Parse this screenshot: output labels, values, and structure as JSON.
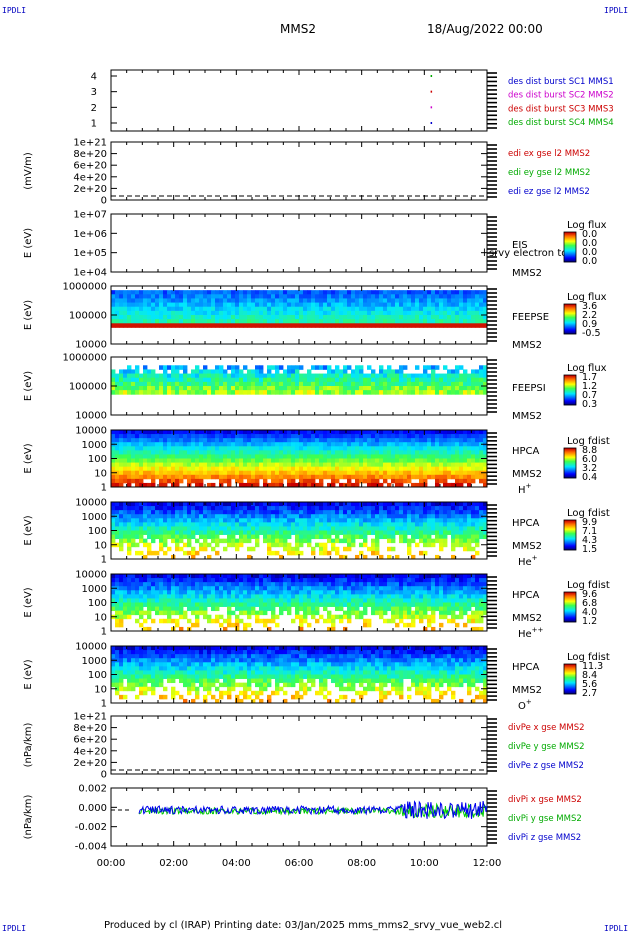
{
  "page": {
    "corner_label": "IPDLI",
    "spacecraft": "MMS2",
    "datetime": "18/Aug/2022 00:00",
    "footer": "Produced by cl (IRAP)   Printing date: 03/Jan/2025   mms_mms2_srvy_vue_web2.cl"
  },
  "chart_data": {
    "type": "multi-panel time series and spectrograms",
    "x_axis": {
      "range": [
        "00:00",
        "12:00"
      ],
      "ticks": [
        "00:00",
        "02:00",
        "04:00",
        "06:00",
        "08:00",
        "10:00",
        "12:00"
      ]
    },
    "panels": [
      {
        "id": "p1",
        "kind": "availability",
        "ylabel": "",
        "yticks": [
          "4",
          "3",
          "2",
          "1"
        ],
        "legend": [
          {
            "text": "des dist burst SC1 MMS1",
            "color": "#0000cc"
          },
          {
            "text": "des dist burst SC2 MMS2",
            "color": "#cc00cc"
          },
          {
            "text": "des dist burst SC3 MMS3",
            "color": "#cc0000"
          },
          {
            "text": "des dist burst SC4 MMS4",
            "color": "#00aa00"
          }
        ]
      },
      {
        "id": "p2",
        "kind": "line",
        "ylabel": "(mV/m)",
        "yticks": [
          "1e+21",
          "8e+20",
          "6e+20",
          "4e+20",
          "2e+20",
          "0"
        ],
        "legend": [
          {
            "text": "edi ex gse l2 MMS2",
            "color": "#cc0000"
          },
          {
            "text": "edi ey gse l2 MMS2",
            "color": "#00aa00"
          },
          {
            "text": "edi ez gse l2 MMS2",
            "color": "#0000cc"
          }
        ]
      },
      {
        "id": "p3",
        "kind": "spectrogram",
        "ylabel": "E (eV)",
        "yticks": [
          "1e+07",
          "1e+06",
          "1e+05",
          "1e+04"
        ],
        "instrument": "EIS",
        "sc": "MMS2",
        "overlay": "l srvy electron to",
        "cb_title": "Log flux",
        "cb_values": [
          "0.0",
          "0.0",
          "0.0",
          "0.0"
        ]
      },
      {
        "id": "p4",
        "kind": "spectrogram",
        "ylabel": "E (eV)",
        "yticks": [
          "1000000",
          "100000",
          "10000"
        ],
        "instrument": "FEEPSE",
        "sc": "MMS2",
        "cb_title": "Log flux",
        "cb_values": [
          "3.6",
          "2.2",
          "0.9",
          "-0.5"
        ]
      },
      {
        "id": "p5",
        "kind": "spectrogram",
        "ylabel": "E (eV)",
        "yticks": [
          "1000000",
          "100000",
          "10000"
        ],
        "instrument": "FEEPSI",
        "sc": "MMS2",
        "cb_title": "Log flux",
        "cb_values": [
          "1.7",
          "1.2",
          "0.7",
          "0.3"
        ]
      },
      {
        "id": "p6",
        "kind": "spectrogram",
        "ylabel": "E (eV)",
        "yticks": [
          "10000",
          "1000",
          "100",
          "10",
          "1"
        ],
        "instrument": "HPCA",
        "sc": "MMS2",
        "species": "H",
        "charge": "+",
        "cb_title": "Log fdist",
        "cb_values": [
          "8.8",
          "6.0",
          "3.2",
          "0.4"
        ]
      },
      {
        "id": "p7",
        "kind": "spectrogram",
        "ylabel": "E (eV)",
        "yticks": [
          "10000",
          "1000",
          "100",
          "10",
          "1"
        ],
        "instrument": "HPCA",
        "sc": "MMS2",
        "species": "He",
        "charge": "+",
        "cb_title": "Log fdist",
        "cb_values": [
          "9.9",
          "7.1",
          "4.3",
          "1.5"
        ]
      },
      {
        "id": "p8",
        "kind": "spectrogram",
        "ylabel": "E (eV)",
        "yticks": [
          "10000",
          "1000",
          "100",
          "10",
          "1"
        ],
        "instrument": "HPCA",
        "sc": "MMS2",
        "species": "He",
        "charge": "++",
        "cb_title": "Log fdist",
        "cb_values": [
          "9.6",
          "6.8",
          "4.0",
          "1.2"
        ]
      },
      {
        "id": "p9",
        "kind": "spectrogram",
        "ylabel": "E (eV)",
        "yticks": [
          "10000",
          "1000",
          "100",
          "10",
          "1"
        ],
        "instrument": "HPCA",
        "sc": "MMS2",
        "species": "O",
        "charge": "+",
        "cb_title": "Log fdist",
        "cb_values": [
          "11.3",
          "8.4",
          "5.6",
          "2.7"
        ]
      },
      {
        "id": "p10",
        "kind": "line",
        "ylabel": "(nPa/km)",
        "yticks": [
          "1e+21",
          "8e+20",
          "6e+20",
          "4e+20",
          "2e+20",
          "0"
        ],
        "legend": [
          {
            "text": "divPe x gse MMS2",
            "color": "#cc0000"
          },
          {
            "text": "divPe y gse MMS2",
            "color": "#00aa00"
          },
          {
            "text": "divPe z gse MMS2",
            "color": "#0000cc"
          }
        ]
      },
      {
        "id": "p11",
        "kind": "line",
        "ylabel": "(nPa/km)",
        "yticks": [
          "0.002",
          "0.000",
          "-0.002",
          "-0.004"
        ],
        "legend": [
          {
            "text": "divPi x gse MMS2",
            "color": "#cc0000"
          },
          {
            "text": "divPi y gse MMS2",
            "color": "#00aa00"
          },
          {
            "text": "divPi z gse MMS2",
            "color": "#0000cc"
          }
        ]
      }
    ]
  }
}
